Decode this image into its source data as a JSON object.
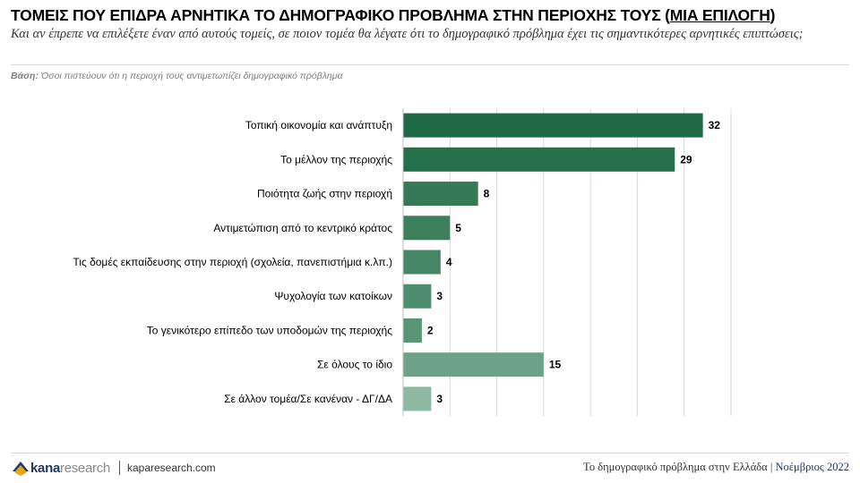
{
  "header": {
    "title_main": "ΤΟΜΕΙΣ ΠΟΥ ΕΠΙΔΡΑ ΑΡΝΗΤΙΚΑ ΤΟ ΔΗΜΟΓΡΑΦΙΚΟ ΠΡΟΒΛΗΜΑ ΣΤΗΝ ΠΕΡΙΟΧΗΣ ΤΟΥΣ (",
    "title_choice": "ΜΙΑ ΕΠΙΛΟΓΗ",
    "title_end": ")",
    "subtitle": "Και αν έπρεπε να επιλέξετε έναν από αυτούς τομείς, σε ποιον τομέα θα λέγατε ότι το δημογραφικό πρόβλημα έχει τις σημαντικότερες αρνητικές επιπτώσεις;",
    "base_label": "Βάση:",
    "base_text": "Όσοι πιστεύουν ότι η περιοχή τους αντιμετωπίζει δημογραφικό πρόβλημα"
  },
  "chart_data": {
    "type": "bar",
    "orientation": "horizontal",
    "categories": [
      "Τοπική οικονομία και ανάπτυξη",
      "Το μέλλον της περιοχής",
      "Ποιότητα ζωής στην περιοχή",
      "Αντιμετώπιση από το κεντρικό κράτος",
      "Τις δομές εκπαίδευσης στην περιοχή (σχολεία, πανεπιστήμια κ.λπ.)",
      "Ψυχολογία των κατοίκων",
      "Το γενικότερο επίπεδο των υποδομών της περιοχής",
      "Σε όλους το ίδιο",
      "Σε άλλον τομέα/Σε κανέναν - ΔΓ/ΔΑ"
    ],
    "values": [
      32,
      29,
      8,
      5,
      4,
      3,
      2,
      15,
      3
    ],
    "bar_colors": [
      "#1e6b45",
      "#23704a",
      "#347a56",
      "#3b7f5c",
      "#458665",
      "#4e8d6d",
      "#5a9577",
      "#6ea288",
      "#8fb8a3"
    ],
    "xlim": [
      0,
      35
    ],
    "grid": true,
    "show_x_ticks": false,
    "legend": "none"
  },
  "footer": {
    "logo_kana": "kana",
    "logo_research": "research",
    "url": "kaparesearch.com",
    "right_text": "Το δημογραφικό πρόβλημα στην Ελλάδα",
    "right_sep": "|",
    "right_date": "Νοέμβριος 2022",
    "logo_color": "#1f3864"
  }
}
